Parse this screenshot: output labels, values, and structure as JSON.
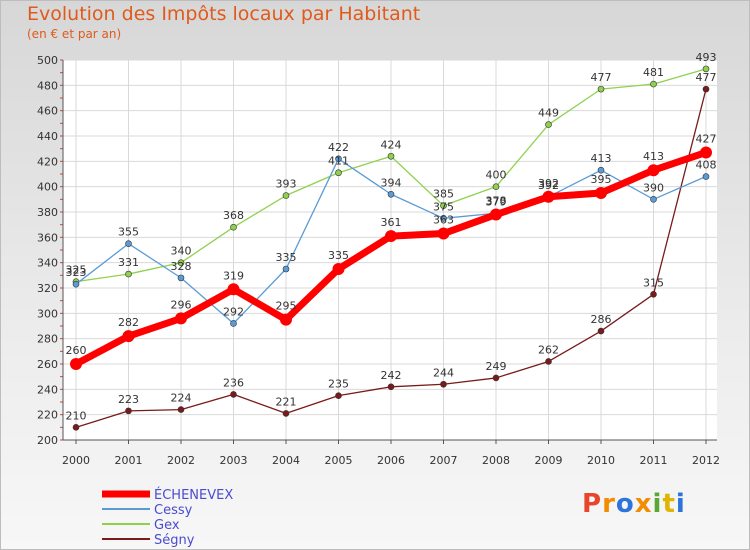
{
  "header": {
    "title": "Evolution des Impôts locaux par Habitant",
    "subtitle": "(en € et par an)"
  },
  "logo": {
    "text": "Proxiti",
    "colors": [
      "#e8462a",
      "#f28c00",
      "#2e73d9",
      "#f28c00",
      "#5aa832",
      "#e0b400",
      "#2e73d9"
    ]
  },
  "chart_data": {
    "type": "line",
    "x": [
      2000,
      2001,
      2002,
      2003,
      2004,
      2005,
      2006,
      2007,
      2008,
      2009,
      2010,
      2011,
      2012
    ],
    "ylim": [
      200,
      500
    ],
    "yticks": [
      200,
      220,
      240,
      260,
      280,
      300,
      320,
      340,
      360,
      380,
      400,
      420,
      440,
      460,
      480,
      500
    ],
    "grid": true,
    "legend_position": "bottom-left",
    "series": [
      {
        "name": "Ségny",
        "color": "#7a1a1a",
        "values": [
          210,
          223,
          224,
          236,
          221,
          235,
          242,
          244,
          249,
          262,
          286,
          315,
          477
        ]
      },
      {
        "name": "Gex",
        "color": "#8fd14f",
        "values": [
          325,
          331,
          340,
          368,
          393,
          411,
          424,
          385,
          400,
          449,
          477,
          481,
          493
        ]
      },
      {
        "name": "Cessy",
        "color": "#5b9bd5",
        "values": [
          323,
          355,
          328,
          292,
          335,
          422,
          394,
          375,
          379,
          392,
          413,
          390,
          408
        ]
      },
      {
        "name": "ÉCHENEVEX",
        "color": "#ff0000",
        "values": [
          260,
          282,
          296,
          319,
          295,
          335,
          361,
          363,
          378,
          392,
          395,
          413,
          427
        ]
      }
    ]
  }
}
